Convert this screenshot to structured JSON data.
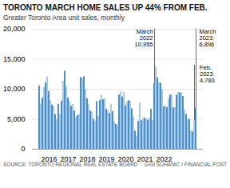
{
  "chart_data": {
    "type": "bar",
    "title": "TORONTO MARCH HOME SALES UP 44% FROM FEB.",
    "subtitle": "Greater Toronto Area unit sales, monthly",
    "source": "SOURCE: TORONTO REGIONAL REAL ESTATE BOARD",
    "credit": "GIGI SUHANIC / FINANCIAL POST",
    "categories": [
      null,
      null,
      null,
      null,
      null,
      null,
      "2016",
      null,
      null,
      null,
      null,
      null,
      null,
      null,
      null,
      null,
      null,
      null,
      "2017",
      null,
      null,
      null,
      null,
      null,
      null,
      null,
      null,
      null,
      null,
      null,
      "2018",
      null,
      null,
      null,
      null,
      null,
      null,
      null,
      null,
      null,
      null,
      null,
      "2019",
      null,
      null,
      null,
      null,
      null,
      null,
      null,
      null,
      null,
      null,
      null,
      "2020",
      null,
      null,
      null,
      null,
      null,
      null,
      null,
      null,
      null,
      null,
      null,
      "2021",
      null,
      null,
      null,
      null,
      null,
      null,
      null,
      null,
      null,
      null,
      null,
      "2022",
      null,
      null,
      null,
      null,
      null,
      null,
      null,
      null,
      null,
      null,
      null,
      null,
      null,
      null,
      null,
      null,
      null,
      null,
      null,
      null
    ],
    "values": [
      10543,
      7536,
      8523,
      10326,
      11094,
      12052,
      9605,
      8082,
      7376,
      7090,
      5759,
      4939,
      7484,
      5765,
      8014,
      11303,
      13012,
      10400,
      8567,
      8019,
      7171,
      7473,
      6375,
      5338,
      5632,
      5765,
      11954,
      11759,
      12084,
      9974,
      8396,
      7425,
      6357,
      6249,
      4987,
      4706,
      7936,
      5481,
      8144,
      9042,
      8250,
      8428,
      6685,
      6336,
      5942,
      7492,
      6251,
      4600,
      4135,
      3974,
      9043,
      9583,
      8728,
      9484,
      7244,
      7949,
      8097,
      7979,
      6752,
      5365,
      3027,
      2175,
      4643,
      7711,
      4765,
      5038,
      5172,
      5081,
      4839,
      5123,
      6654,
      4765,
      10955,
      13663,
      11905,
      11100,
      11000,
      9956,
      7061,
      7200,
      6928,
      8422,
      9017,
      9044,
      6873,
      6943,
      9018,
      9481,
      9411,
      9441,
      8806,
      6549,
      5794,
      4887,
      4997,
      3009,
      2900,
      4783,
      6896
    ],
    "colors": [
      "#4a90c8",
      "#a8c8e8",
      "#4a90c8",
      "#a8c8e8",
      "#4a90c8",
      "#a8c8e8",
      "#4a90c8",
      "#a8c8e8",
      "#4a90c8",
      "#a8c8e8",
      "#4a90c8",
      "#a8c8e8",
      "#4a90c8",
      "#a8c8e8",
      "#4a90c8",
      "#a8c8e8",
      "#4a90c8",
      "#a8c8e8",
      "#4a90c8",
      "#a8c8e8",
      "#4a90c8",
      "#a8c8e8",
      "#4a90c8",
      "#a8c8e8",
      "#4a90c8",
      "#a8c8e8",
      "#4a90c8",
      "#a8c8e8",
      "#4a90c8",
      "#a8c8e8",
      "#4a90c8",
      "#a8c8e8",
      "#4a90c8",
      "#a8c8e8",
      "#4a90c8",
      "#a8c8e8",
      "#4a90c8",
      "#a8c8e8",
      "#4a90c8",
      "#a8c8e8",
      "#4a90c8",
      "#a8c8e8",
      "#4a90c8",
      "#a8c8e8",
      "#4a90c8",
      "#a8c8e8",
      "#4a90c8",
      "#a8c8e8",
      "#4a90c8",
      "#a8c8e8",
      "#4a90c8",
      "#a8c8e8",
      "#4a90c8",
      "#a8c8e8",
      "#4a90c8",
      "#a8c8e8",
      "#4a90c8",
      "#a8c8e8",
      "#4a90c8",
      "#a8c8e8",
      "#4a90c8",
      "#a8c8e8",
      "#4a90c8",
      "#a8c8e8",
      "#4a90c8",
      "#a8c8e8",
      "#4a90c8",
      "#a8c8e8",
      "#4a90c8",
      "#a8c8e8",
      "#4a90c8",
      "#a8c8e8",
      "#4a90c8",
      "#a8c8e8",
      "#4a90c8",
      "#a8c8e8",
      "#4a90c8",
      "#a8c8e8",
      "#4a90c8",
      "#a8c8e8",
      "#4a90c8",
      "#a8c8e8",
      "#4a90c8",
      "#a8c8e8",
      "#4a90c8",
      "#a8c8e8",
      "#4a90c8",
      "#a8c8e8",
      "#4a90c8",
      "#a8c8e8",
      "#4a90c8",
      "#a8c8e8",
      "#4a90c8",
      "#a8c8e8",
      "#4a90c8",
      "#a8c8e8",
      "#4a90c8",
      "#a8c8e8",
      "#4a90c8"
    ],
    "ylim": [
      0,
      20000
    ],
    "yticks": [
      0,
      {
        "value": 5000,
        "label": "5,000"
      },
      {
        "value": 10000,
        "label": "10,000"
      },
      {
        "value": 15000,
        "label": "15,000"
      },
      {
        "value": 20000,
        "label": "20,000"
      }
    ],
    "grid": true,
    "annotations": [
      {
        "text": "March\n2022\n10,955",
        "x": 72
      },
      {
        "text": "March\n2023:\n6,896",
        "x": 98
      },
      {
        "text": "Feb.\n2023\n4,783",
        "x": 97
      }
    ]
  }
}
